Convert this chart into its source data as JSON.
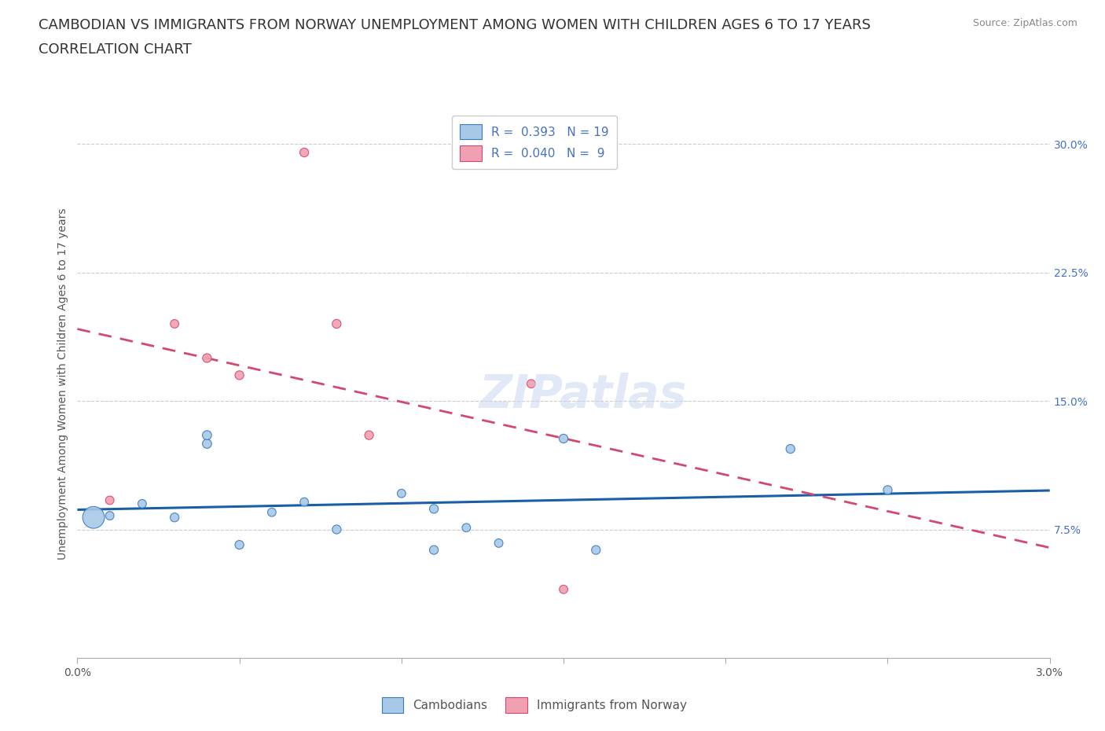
{
  "title_line1": "CAMBODIAN VS IMMIGRANTS FROM NORWAY UNEMPLOYMENT AMONG WOMEN WITH CHILDREN AGES 6 TO 17 YEARS",
  "title_line2": "CORRELATION CHART",
  "source": "Source: ZipAtlas.com",
  "ylabel": "Unemployment Among Women with Children Ages 6 to 17 years",
  "xlim": [
    0.0,
    0.03
  ],
  "ylim": [
    0.0,
    0.32
  ],
  "xticks": [
    0.0,
    0.005,
    0.01,
    0.015,
    0.02,
    0.025,
    0.03
  ],
  "xticklabels": [
    "0.0%",
    "",
    "",
    "",
    "",
    "",
    "3.0%"
  ],
  "ytick_positions": [
    0.075,
    0.15,
    0.225,
    0.3
  ],
  "yticklabels": [
    "7.5%",
    "15.0%",
    "22.5%",
    "30.0%"
  ],
  "cambodian_x": [
    0.0005,
    0.001,
    0.002,
    0.003,
    0.004,
    0.004,
    0.005,
    0.006,
    0.007,
    0.008,
    0.01,
    0.011,
    0.011,
    0.012,
    0.013,
    0.015,
    0.016,
    0.022,
    0.025
  ],
  "cambodian_y": [
    0.082,
    0.083,
    0.09,
    0.082,
    0.125,
    0.13,
    0.066,
    0.085,
    0.091,
    0.075,
    0.096,
    0.087,
    0.063,
    0.076,
    0.067,
    0.128,
    0.063,
    0.122,
    0.098
  ],
  "cambodian_sizes": [
    400,
    60,
    60,
    65,
    70,
    70,
    65,
    60,
    60,
    65,
    60,
    65,
    65,
    60,
    60,
    65,
    65,
    65,
    65
  ],
  "norway_x": [
    0.001,
    0.003,
    0.004,
    0.005,
    0.007,
    0.008,
    0.009,
    0.014,
    0.015
  ],
  "norway_y": [
    0.092,
    0.195,
    0.175,
    0.165,
    0.295,
    0.195,
    0.13,
    0.16,
    0.04
  ],
  "norway_sizes": [
    60,
    60,
    65,
    65,
    65,
    65,
    65,
    60,
    60
  ],
  "cambodian_color": "#a8c8e8",
  "norway_color": "#f0a0b0",
  "cambodian_edge_color": "#3a7abf",
  "norway_edge_color": "#d44870",
  "cambodian_line_color": "#1a5fa5",
  "norway_line_color": "#d44870",
  "R_cambodian": "0.393",
  "N_cambodian": "19",
  "R_norway": "0.040",
  "N_norway": "9",
  "watermark": "ZIPatlas",
  "title_fontsize": 13,
  "axis_label_fontsize": 10,
  "tick_fontsize": 10,
  "source_fontsize": 9,
  "legend_fontsize": 11
}
